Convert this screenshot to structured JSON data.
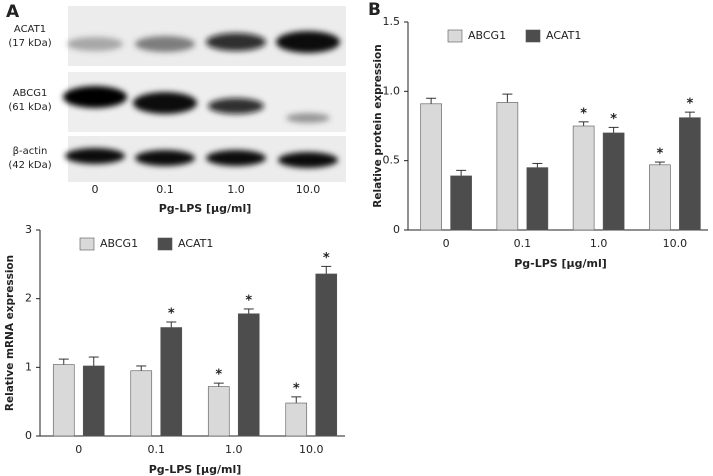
{
  "panel_labels": [
    "A",
    "B"
  ],
  "blot": {
    "rows": [
      {
        "label": "ACAT1",
        "size": "(17 kDa)"
      },
      {
        "label": "ABCG1",
        "size": "(61 kDa)"
      },
      {
        "label": "β-actin",
        "size": "(42 kDa)"
      }
    ],
    "categories": [
      "0",
      "0.1",
      "1.0",
      "10.0"
    ],
    "xlabel": "Pg-LPS [μg/ml]"
  },
  "chart_data": [
    {
      "type": "bar",
      "ylabel": "Relative mRNA expression",
      "xlabel": "Pg-LPS [μg/ml]",
      "categories": [
        "0",
        "0.1",
        "1.0",
        "10.0"
      ],
      "series": [
        {
          "name": "ABCG1",
          "color": "#d9d9d9",
          "values": [
            1.04,
            0.95,
            0.72,
            0.48
          ],
          "errors": [
            0.08,
            0.07,
            0.05,
            0.09
          ],
          "annotations": [
            null,
            null,
            "*",
            "*"
          ]
        },
        {
          "name": "ACAT1",
          "color": "#4d4d4d",
          "values": [
            1.02,
            1.58,
            1.78,
            2.36
          ],
          "errors": [
            0.13,
            0.08,
            0.07,
            0.11
          ],
          "annotations": [
            null,
            "*",
            "*",
            "*"
          ]
        }
      ],
      "ylim": [
        0,
        3
      ],
      "yticks": [
        0,
        1,
        2,
        3
      ],
      "grid": false
    },
    {
      "type": "bar",
      "ylabel": "Relative protein expression",
      "xlabel": "Pg-LPS [μg/ml]",
      "categories": [
        "0",
        "0.1",
        "1.0",
        "10.0"
      ],
      "series": [
        {
          "name": "ABCG1",
          "color": "#d9d9d9",
          "values": [
            0.91,
            0.92,
            0.75,
            0.47
          ],
          "errors": [
            0.04,
            0.06,
            0.03,
            0.02
          ],
          "annotations": [
            null,
            null,
            "*",
            "*"
          ]
        },
        {
          "name": "ACAT1",
          "color": "#4d4d4d",
          "values": [
            0.39,
            0.45,
            0.7,
            0.81
          ],
          "errors": [
            0.04,
            0.03,
            0.04,
            0.04
          ],
          "annotations": [
            null,
            null,
            "*",
            "*"
          ]
        }
      ],
      "ylim": [
        0,
        1.5
      ],
      "yticks": [
        0,
        0.5,
        {
          "value": 1.0,
          "label": "1.0"
        },
        1.5
      ],
      "grid": false
    }
  ]
}
